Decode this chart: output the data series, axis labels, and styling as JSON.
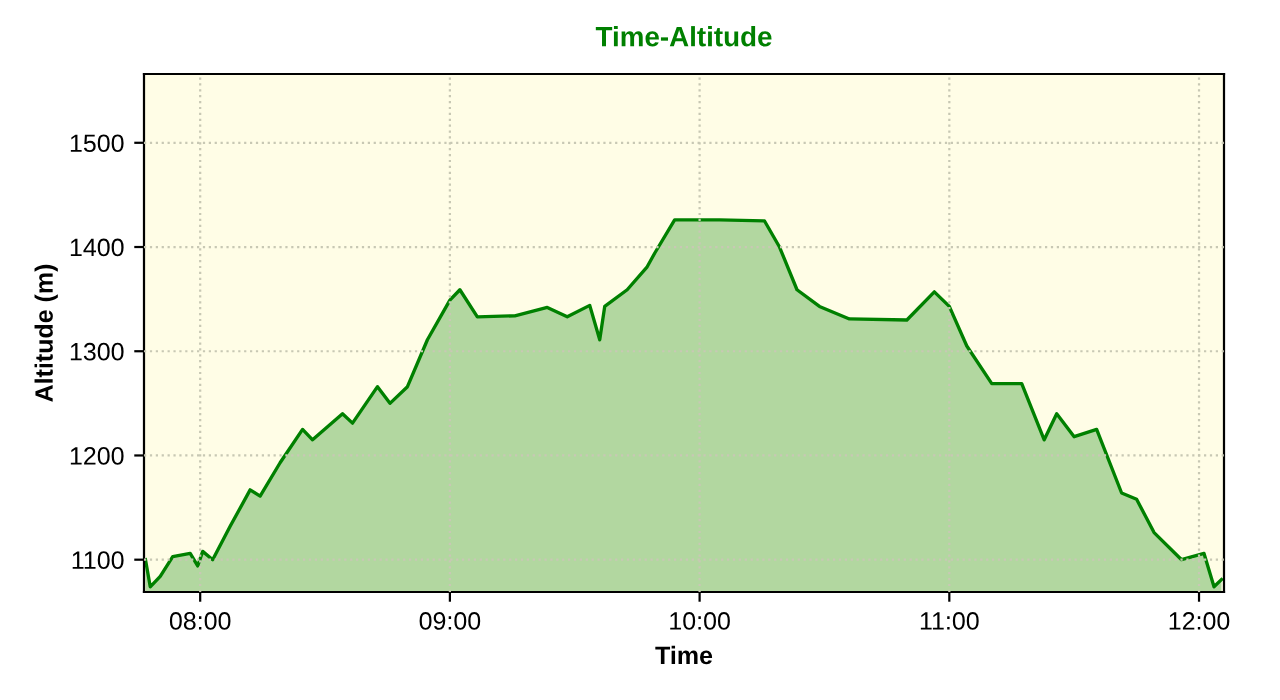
{
  "chart_data": {
    "type": "area",
    "title": "Time-Altitude",
    "xlabel": "Time",
    "ylabel": "Altitude (m)",
    "x": [
      7.781,
      7.8,
      7.84,
      7.89,
      7.96,
      7.99,
      8.01,
      8.05,
      8.12,
      8.2,
      8.24,
      8.32,
      8.41,
      8.45,
      8.57,
      8.61,
      8.71,
      8.76,
      8.83,
      8.91,
      9.0,
      9.04,
      9.11,
      9.26,
      9.39,
      9.47,
      9.56,
      9.6,
      9.62,
      9.71,
      9.79,
      9.82,
      9.9,
      10.08,
      10.26,
      10.32,
      10.39,
      10.48,
      10.6,
      10.83,
      10.94,
      11.0,
      11.07,
      11.17,
      11.29,
      11.38,
      11.43,
      11.5,
      11.59,
      11.69,
      11.75,
      11.82,
      11.93,
      12.02,
      12.06,
      12.09
    ],
    "series": [
      {
        "color": "#008000",
        "values": [
          1100,
          1074,
          1084,
          1103,
          1106,
          1094,
          1108,
          1100,
          1132,
          1167,
          1161,
          1193,
          1225,
          1215,
          1240,
          1231,
          1266,
          1250,
          1266,
          1311,
          1349,
          1359,
          1333,
          1334,
          1342,
          1333,
          1344,
          1311,
          1343,
          1359,
          1381,
          1394,
          1426,
          1426,
          1425,
          1400,
          1359,
          1343,
          1331,
          1330,
          1357,
          1343,
          1305,
          1269,
          1269,
          1215,
          1240,
          1218,
          1225,
          1164,
          1158,
          1126,
          1100,
          1106,
          1074,
          1081
        ]
      }
    ],
    "xlim": [
      7.775,
      12.1
    ],
    "ylim": [
      1069,
      1566
    ],
    "xticks": [
      {
        "value": 8,
        "label": "08:00"
      },
      {
        "value": 9,
        "label": "09:00"
      },
      {
        "value": 10,
        "label": "10:00"
      },
      {
        "value": 11,
        "label": "11:00"
      },
      {
        "value": 12,
        "label": "12:00"
      }
    ],
    "yticks": [
      1100,
      1200,
      1300,
      1400,
      1500
    ],
    "grid": true,
    "legend": false,
    "line_style": "solid",
    "marker": "none"
  }
}
